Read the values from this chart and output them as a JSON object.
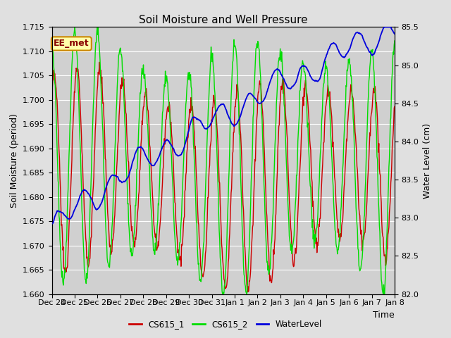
{
  "title": "Soil Moisture and Well Pressure",
  "xlabel": "Time",
  "ylabel_left": "Soil Moisture (period)",
  "ylabel_right": "Water Level (cm)",
  "ylim_left": [
    1.66,
    1.715
  ],
  "ylim_right": [
    82.0,
    85.5
  ],
  "yticks_left": [
    1.66,
    1.665,
    1.67,
    1.675,
    1.68,
    1.685,
    1.69,
    1.695,
    1.7,
    1.705,
    1.71,
    1.715
  ],
  "yticks_right": [
    82.0,
    82.5,
    83.0,
    83.5,
    84.0,
    84.5,
    85.0,
    85.5
  ],
  "xtick_labels": [
    "Dec 24",
    "Dec 25",
    "Dec 26",
    "Dec 27",
    "Dec 28",
    "Dec 29",
    "Dec 30",
    "Dec 31",
    "Jan 1",
    "Jan 2",
    "Jan 3",
    "Jan 4",
    "Jan 5",
    "Jan 6",
    "Jan 7",
    "Jan 8"
  ],
  "color_cs615_1": "#cc0000",
  "color_cs615_2": "#00dd00",
  "color_water": "#0000dd",
  "bg_color": "#e0e0e0",
  "plot_bg_color": "#d0d0d0",
  "annotation_text": "EE_met",
  "annotation_bg": "#ffffaa",
  "annotation_border": "#cc8800",
  "legend_labels": [
    "CS615_1",
    "CS615_2",
    "WaterLevel"
  ],
  "title_fontsize": 11,
  "label_fontsize": 9,
  "tick_fontsize": 8
}
